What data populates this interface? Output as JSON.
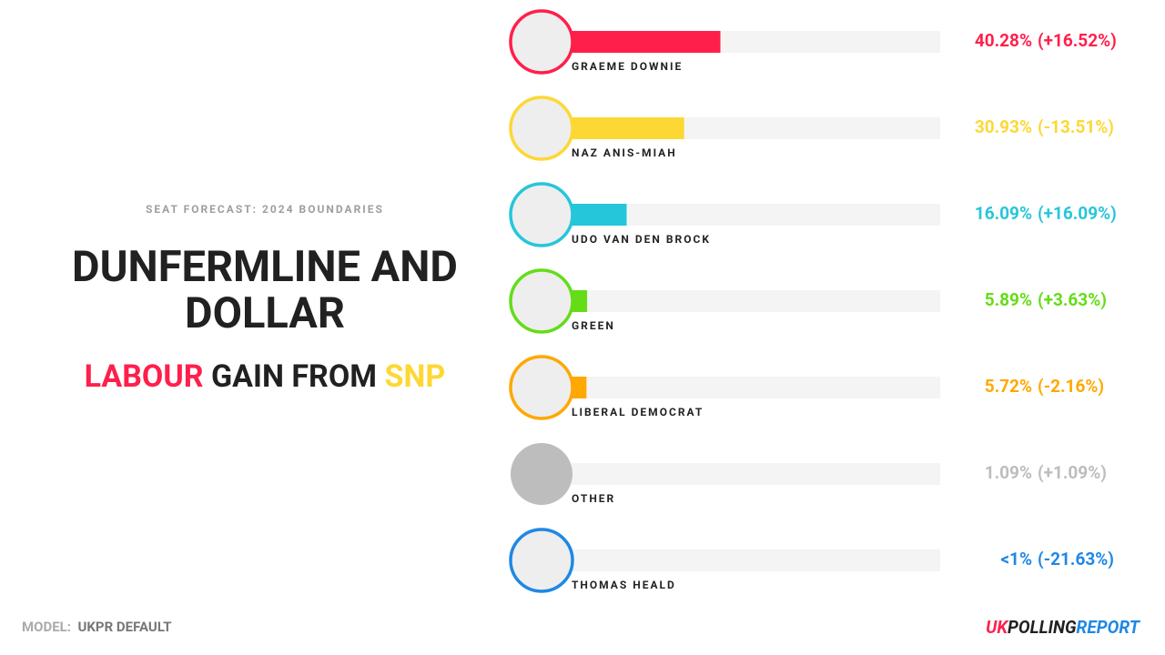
{
  "header": {
    "subtitle": "SEAT FORECAST: 2024 BOUNDARIES",
    "result": {
      "winner": "LABOUR",
      "verb": "GAIN FROM",
      "loser": "SNP"
    }
  },
  "footer": {
    "model_label": "MODEL:",
    "model": "UKPR DEFAULT",
    "logo": [
      "UK",
      "POLLING",
      "REPORT"
    ]
  },
  "chart_data": {
    "type": "bar",
    "orientation": "horizontal",
    "title": "DUNFERMLINE AND DOLLAR",
    "categories": [
      "GRAEME DOWNIE",
      "NAZ ANIS-MIAH",
      "UDO VAN DEN BROCK",
      "GREEN",
      "LIBERAL DEMOCRAT",
      "OTHER",
      "THOMAS HEALD"
    ],
    "values": [
      40.28,
      30.93,
      16.09,
      5.89,
      5.72,
      1.09,
      0.3
    ],
    "value_labels": [
      "40.28%",
      "30.93%",
      "16.09%",
      "5.89%",
      "5.72%",
      "1.09%",
      "<1%"
    ],
    "changes": [
      16.52,
      -13.51,
      16.09,
      3.63,
      -2.16,
      1.09,
      -21.63
    ],
    "change_labels": [
      "(+16.52%)",
      "(-13.51%)",
      "(+16.09%)",
      "(+3.63%)",
      "(-2.16%)",
      "(+1.09%)",
      "(-21.63%)"
    ],
    "colors": [
      "#ff1f4b",
      "#fdd835",
      "#26c6da",
      "#64dd17",
      "#ffa800",
      "#bdbdbd",
      "#1e88e5"
    ],
    "xlim": [
      0,
      97
    ]
  }
}
